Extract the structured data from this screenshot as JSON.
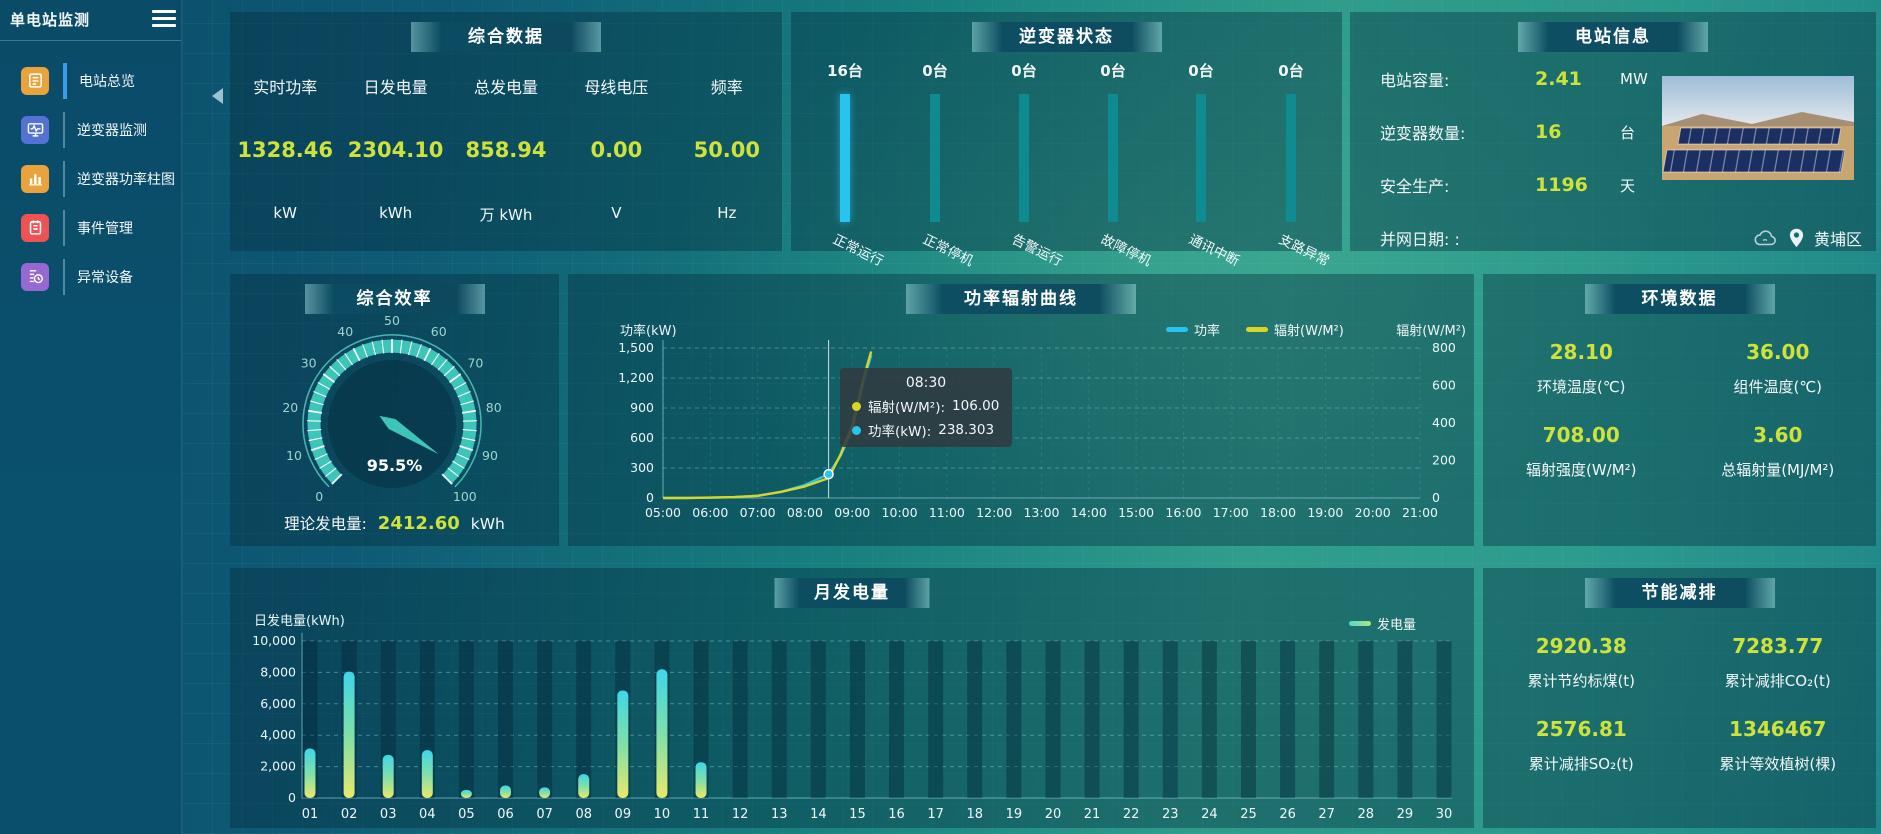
{
  "app": {
    "title": "单电站监测"
  },
  "sidebar": {
    "items": [
      {
        "label": "电站总览",
        "icon": "news-icon",
        "color": "#e8a33d",
        "active": true
      },
      {
        "label": "逆变器监测",
        "icon": "monitor-wave-icon",
        "color": "#5472d3",
        "active": false
      },
      {
        "label": "逆变器功率柱图",
        "icon": "bar-chart-icon",
        "color": "#e8a33d",
        "active": false
      },
      {
        "label": "事件管理",
        "icon": "notebook-icon",
        "color": "#ee5253",
        "active": false
      },
      {
        "label": "异常设备",
        "icon": "device-alert-icon",
        "color": "#9668d1",
        "active": false
      }
    ]
  },
  "overview": {
    "title": "综合数据",
    "metrics": [
      {
        "label": "实时功率",
        "value": "1328.46",
        "unit": "kW"
      },
      {
        "label": "日发电量",
        "value": "2304.10",
        "unit": "kWh"
      },
      {
        "label": "总发电量",
        "value": "858.94",
        "unit": "万 kWh"
      },
      {
        "label": "母线电压",
        "value": "0.00",
        "unit": "V"
      },
      {
        "label": "频率",
        "value": "50.00",
        "unit": "Hz"
      }
    ]
  },
  "inverter_status": {
    "title": "逆变器状态",
    "bars": [
      {
        "count": "16台",
        "label": "正常运行",
        "highlight": true
      },
      {
        "count": "0台",
        "label": "正常停机",
        "highlight": false
      },
      {
        "count": "0台",
        "label": "告警运行",
        "highlight": false
      },
      {
        "count": "0台",
        "label": "故障停机",
        "highlight": false
      },
      {
        "count": "0台",
        "label": "通讯中断",
        "highlight": false
      },
      {
        "count": "0台",
        "label": "支路异常",
        "highlight": false
      }
    ]
  },
  "station_info": {
    "title": "电站信息",
    "rows": [
      {
        "label": "电站容量:",
        "value": "2.41",
        "unit": "MW"
      },
      {
        "label": "逆变器数量:",
        "value": "16",
        "unit": "台"
      },
      {
        "label": "安全生产:",
        "value": "1196",
        "unit": "天"
      }
    ],
    "grid_date_label": "并网日期: :",
    "location": "黄埔区"
  },
  "efficiency": {
    "title": "综合效率",
    "value_label": "95.5%",
    "scale": [
      0,
      10,
      20,
      30,
      40,
      50,
      60,
      70,
      80,
      90,
      100
    ],
    "footer_label": "理论发电量:",
    "footer_value": "2412.60",
    "footer_unit": "kWh"
  },
  "environment": {
    "title": "环境数据",
    "cells": [
      {
        "value": "28.10",
        "label": "环境温度(℃)"
      },
      {
        "value": "36.00",
        "label": "组件温度(℃)"
      },
      {
        "value": "708.00",
        "label": "辐射强度(W/M²)"
      },
      {
        "value": "3.60",
        "label": "总辐射量(MJ/M²)"
      }
    ]
  },
  "savings": {
    "title": "节能减排",
    "cells": [
      {
        "value": "2920.38",
        "label": "累计节约标煤(t)"
      },
      {
        "value": "7283.77",
        "label": "累计减排CO₂(t)"
      },
      {
        "value": "2576.81",
        "label": "累计减排SO₂(t)"
      },
      {
        "value": "1346467",
        "label": "累计等效植树(棵)"
      }
    ]
  },
  "chart_data": [
    {
      "id": "power_radiation",
      "type": "line",
      "title": "功率辐射曲线",
      "ylabel_left": "功率(kW)",
      "ylabel_right": "辐射(W/M²)",
      "ylim_left": [
        0,
        1500
      ],
      "ylim_right": [
        0,
        800
      ],
      "yticks_left": [
        "0",
        "300",
        "600",
        "900",
        "1,200",
        "1,500"
      ],
      "yticks_right": [
        "0",
        "200",
        "400",
        "600",
        "800"
      ],
      "x_ticks": [
        "05:00",
        "06:00",
        "07:00",
        "08:00",
        "09:00",
        "10:00",
        "11:00",
        "12:00",
        "13:00",
        "14:00",
        "15:00",
        "16:00",
        "17:00",
        "18:00",
        "19:00",
        "20:00",
        "21:00"
      ],
      "legend": [
        {
          "name": "功率",
          "color": "#29c3ef"
        },
        {
          "name": "辐射(W/M²)",
          "color": "#d9d525"
        }
      ],
      "grid": true,
      "legend_position": "top",
      "series": [
        {
          "name": "功率",
          "axis": "left",
          "color": "#29c3ef",
          "points": [
            [
              5,
              0
            ],
            [
              5.5,
              1
            ],
            [
              6,
              3
            ],
            [
              6.5,
              8
            ],
            [
              7,
              22
            ],
            [
              7.5,
              62
            ],
            [
              8,
              130
            ],
            [
              8.5,
              238.3
            ],
            [
              8.75,
              420
            ],
            [
              9,
              680
            ],
            [
              9.25,
              1180
            ],
            [
              9.4,
              1430
            ]
          ]
        },
        {
          "name": "辐射",
          "axis": "right",
          "color": "#d9d525",
          "points": [
            [
              5,
              0
            ],
            [
              5.5,
              0
            ],
            [
              6,
              2
            ],
            [
              6.5,
              5
            ],
            [
              7,
              12
            ],
            [
              7.5,
              33
            ],
            [
              8,
              62
            ],
            [
              8.5,
              106
            ],
            [
              8.75,
              230
            ],
            [
              9,
              390
            ],
            [
              9.25,
              650
            ],
            [
              9.4,
              782
            ]
          ]
        }
      ],
      "tooltip": {
        "x": 8.5,
        "time": "08:30",
        "rows": [
          {
            "name": "辐射(W/M²):",
            "value": "106.00",
            "color": "#d9d525"
          },
          {
            "name": "功率(kW):",
            "value": "238.303",
            "color": "#29c3ef"
          }
        ]
      }
    },
    {
      "id": "monthly_generation",
      "type": "bar",
      "title": "月发电量",
      "ylabel": "日发电量(kWh)",
      "legend": "发电量",
      "ylim": [
        0,
        10000
      ],
      "yticks": [
        "0",
        "2,000",
        "4,000",
        "6,000",
        "8,000",
        "10,000"
      ],
      "categories": [
        "01",
        "02",
        "03",
        "04",
        "05",
        "06",
        "07",
        "08",
        "09",
        "10",
        "11",
        "12",
        "13",
        "14",
        "15",
        "16",
        "17",
        "18",
        "19",
        "20",
        "21",
        "22",
        "23",
        "24",
        "25",
        "26",
        "27",
        "28",
        "29",
        "30"
      ],
      "values": [
        3150,
        8050,
        2750,
        3050,
        520,
        800,
        680,
        1520,
        6850,
        8200,
        2280,
        0,
        0,
        0,
        0,
        0,
        0,
        0,
        0,
        0,
        0,
        0,
        0,
        0,
        0,
        0,
        0,
        0,
        0,
        0
      ]
    },
    {
      "id": "efficiency_gauge",
      "type": "gauge",
      "title": "综合效率",
      "value": 95.5,
      "min": 0,
      "max": 100,
      "label": "95.5%"
    },
    {
      "id": "inverter_state_bars",
      "type": "bar",
      "title": "逆变器状态",
      "categories": [
        "正常运行",
        "正常停机",
        "告警运行",
        "故障停机",
        "通讯中断",
        "支路异常"
      ],
      "values": [
        16,
        0,
        0,
        0,
        0,
        0
      ],
      "unit": "台"
    }
  ],
  "colors": {
    "value_yellow": "#cde23a",
    "bar_teal": "#0e8d95",
    "bar_cyan": "#29c3ef",
    "gauge_teal": "#3dc5b9"
  }
}
